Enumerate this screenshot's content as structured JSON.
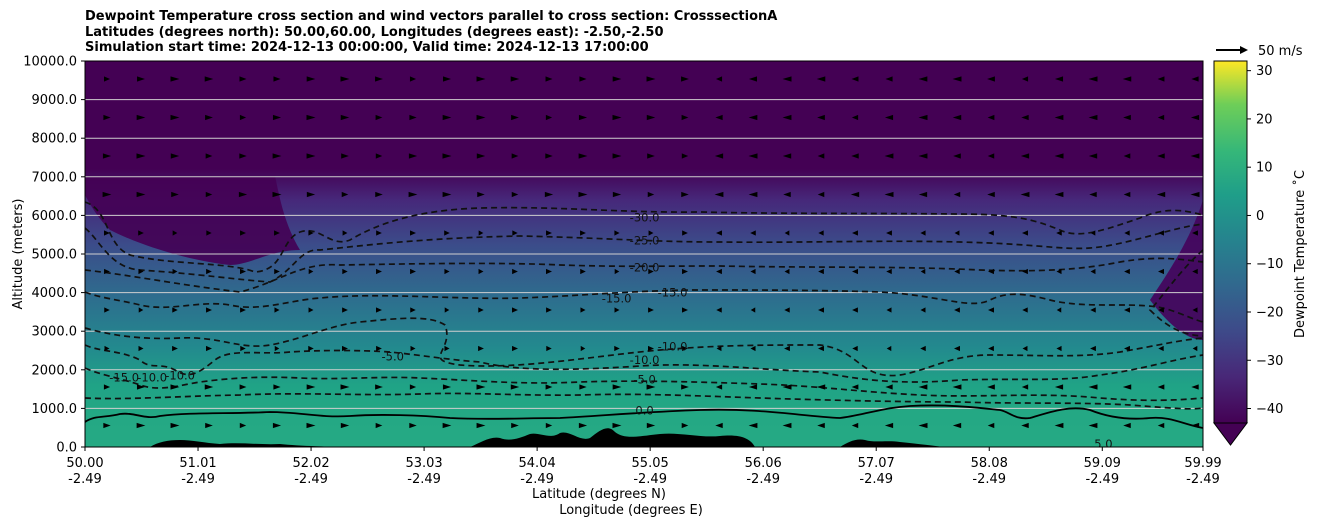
{
  "title_lines": [
    "Dewpoint Temperature cross section and wind vectors parallel to cross section: CrosssectionA",
    "Latitudes (degrees north): 50.00,60.00, Longitudes (degrees east): -2.50,-2.50",
    "Simulation start time: 2024-12-13 00:00:00, Valid time: 2024-12-13 17:00:00"
  ],
  "reference_arrow_label": "50 m/s",
  "chart_data": {
    "type": "heatmap",
    "ylabel": "Altitude (meters)",
    "xlabel_lines": [
      "Latitude (degrees N)",
      "Longitude (degrees E)"
    ],
    "ylim": [
      0,
      10000
    ],
    "xlim": [
      50.0,
      59.99
    ],
    "y_ticks": [
      "0.0",
      "1000.0",
      "2000.0",
      "3000.0",
      "4000.0",
      "5000.0",
      "6000.0",
      "7000.0",
      "8000.0",
      "9000.0",
      "10000.0"
    ],
    "x_ticks": [
      {
        "lat": "50.00",
        "lon": "-2.49"
      },
      {
        "lat": "51.01",
        "lon": "-2.49"
      },
      {
        "lat": "52.02",
        "lon": "-2.49"
      },
      {
        "lat": "53.03",
        "lon": "-2.49"
      },
      {
        "lat": "54.04",
        "lon": "-2.49"
      },
      {
        "lat": "55.05",
        "lon": "-2.49"
      },
      {
        "lat": "56.06",
        "lon": "-2.49"
      },
      {
        "lat": "57.07",
        "lon": "-2.49"
      },
      {
        "lat": "58.08",
        "lon": "-2.49"
      },
      {
        "lat": "59.09",
        "lon": "-2.49"
      },
      {
        "lat": "59.99",
        "lon": "-2.49"
      }
    ],
    "horizontal_grid": true,
    "colorbar": {
      "label": "Dewpoint Temperature ˚C",
      "range": [
        -43,
        32
      ],
      "ticks": [
        "30",
        "20",
        "10",
        "0",
        "−10",
        "−20",
        "−30",
        "−40"
      ],
      "extend": "min",
      "colormap": "viridis"
    },
    "contour_labels": [
      {
        "text": "-30.0",
        "lat": 55.0,
        "alt": 5950
      },
      {
        "text": "-25.0",
        "lat": 55.0,
        "alt": 5350
      },
      {
        "text": "-20.0",
        "lat": 55.0,
        "alt": 4650
      },
      {
        "text": "-15.0",
        "lat": 54.75,
        "alt": 3850
      },
      {
        "text": "-15.0",
        "lat": 55.25,
        "alt": 4000
      },
      {
        "text": "-10.0",
        "lat": 55.0,
        "alt": 2250
      },
      {
        "text": "-10.0",
        "lat": 55.25,
        "alt": 2600
      },
      {
        "text": "-5.0",
        "lat": 55.0,
        "alt": 1750
      },
      {
        "text": "-15.0",
        "lat": 50.35,
        "alt": 1800
      },
      {
        "text": "-10.0",
        "lat": 50.6,
        "alt": 1800
      },
      {
        "text": "-10.0",
        "lat": 50.85,
        "alt": 1850
      },
      {
        "text": "-5.0",
        "lat": 52.75,
        "alt": 2350
      },
      {
        "text": "0.0",
        "lat": 55.0,
        "alt": 950
      },
      {
        "text": "5.0",
        "lat": 59.1,
        "alt": 80
      }
    ]
  }
}
